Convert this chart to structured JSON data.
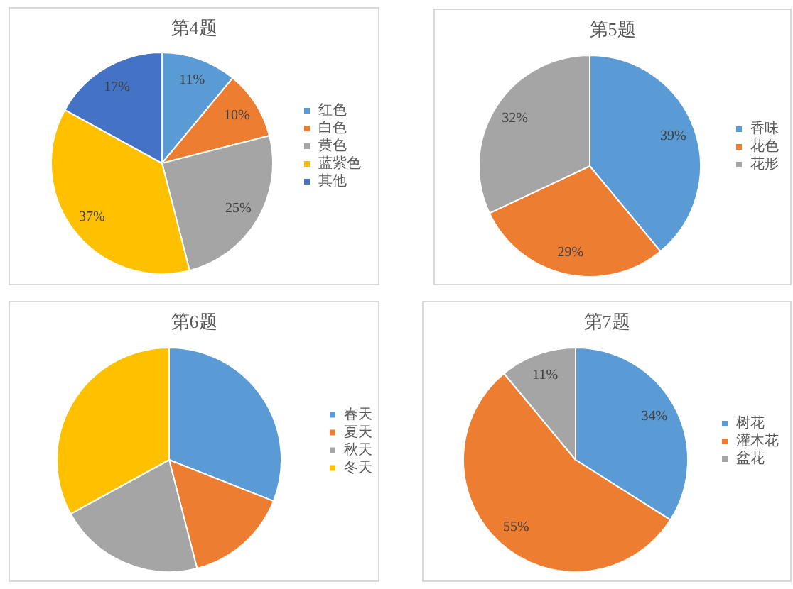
{
  "chart_data": [
    {
      "type": "pie",
      "title": "第4题",
      "categories": [
        "红色",
        "白色",
        "黄色",
        "蓝紫色",
        "其他"
      ],
      "values": [
        11,
        10,
        25,
        37,
        17
      ],
      "colors": [
        "#5b9bd5",
        "#ed7d31",
        "#a5a5a5",
        "#ffc000",
        "#4472c4"
      ],
      "value_labels": [
        "11%",
        "10%",
        "25%",
        "37%",
        "17%"
      ],
      "legend": "right"
    },
    {
      "type": "pie",
      "title": "第5题",
      "categories": [
        "香味",
        "花色",
        "花形"
      ],
      "values": [
        39,
        29,
        32
      ],
      "colors": [
        "#5b9bd5",
        "#ed7d31",
        "#a5a5a5"
      ],
      "value_labels": [
        "39%",
        "29%",
        "32%"
      ],
      "legend": "right"
    },
    {
      "type": "pie",
      "title": "第6题",
      "categories": [
        "春天",
        "夏天",
        "秋天",
        "冬天"
      ],
      "values": [
        31,
        15,
        21,
        33
      ],
      "colors": [
        "#5b9bd5",
        "#ed7d31",
        "#a5a5a5",
        "#ffc000"
      ],
      "legend": "right"
    },
    {
      "type": "pie",
      "title": "第7题",
      "categories": [
        "树花",
        "灌木花",
        "盆花"
      ],
      "values": [
        34,
        55,
        11
      ],
      "colors": [
        "#5b9bd5",
        "#ed7d31",
        "#a5a5a5"
      ],
      "value_labels": [
        "34%",
        "55%",
        "11%"
      ],
      "legend": "right"
    }
  ]
}
